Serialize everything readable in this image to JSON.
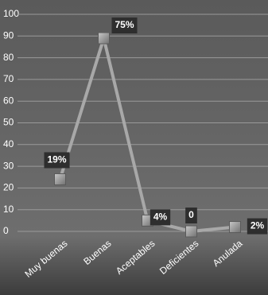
{
  "chart_data": {
    "type": "line",
    "categories": [
      "Muy buenas",
      "Buenas",
      "Aceptables",
      "Deficientes",
      "Anulada"
    ],
    "values": [
      24,
      89,
      5,
      0,
      2
    ],
    "annotations": [
      "19%",
      "75%",
      "4%",
      "0",
      "2%"
    ],
    "color": "#a8a8a8",
    "ylim": [
      0,
      100
    ],
    "yticks": [
      0,
      10,
      20,
      30,
      40,
      50,
      60,
      70,
      80,
      90,
      100
    ],
    "grid": true
  }
}
